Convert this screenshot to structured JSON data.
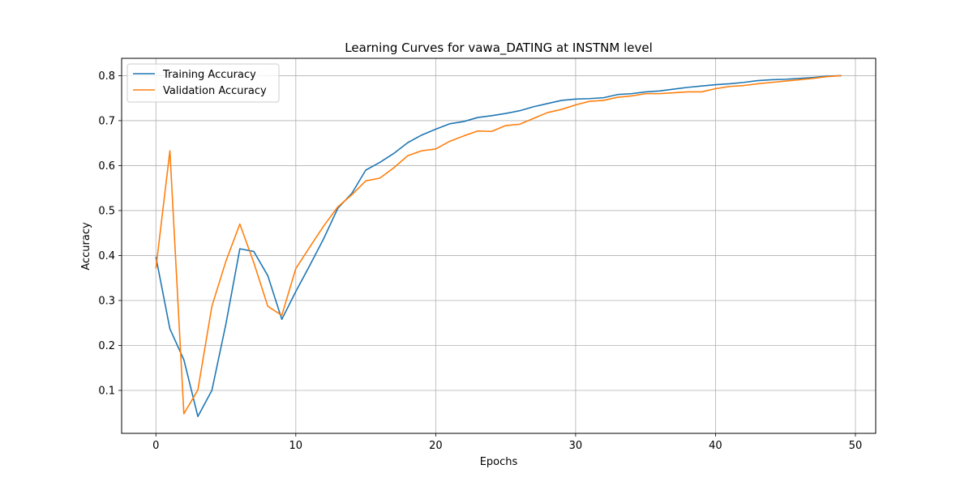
{
  "chart_data": {
    "type": "line",
    "title": "Learning Curves for vawa_DATING at INSTNM level",
    "xlabel": "Epochs",
    "ylabel": "Accuracy",
    "xlim": [
      -2.45,
      51.45
    ],
    "ylim": [
      0.0045,
      0.8386
    ],
    "xticks": [
      0,
      10,
      20,
      30,
      40,
      50
    ],
    "yticks": [
      0.1,
      0.2,
      0.3,
      0.4,
      0.5,
      0.6,
      0.7,
      0.8
    ],
    "ytick_labels": [
      "0.1",
      "0.2",
      "0.3",
      "0.4",
      "0.5",
      "0.6",
      "0.7",
      "0.8"
    ],
    "grid": true,
    "legend": "upper left",
    "x": [
      0,
      1,
      2,
      3,
      4,
      5,
      6,
      7,
      8,
      9,
      10,
      11,
      12,
      13,
      14,
      15,
      16,
      17,
      18,
      19,
      20,
      21,
      22,
      23,
      24,
      25,
      26,
      27,
      28,
      29,
      30,
      31,
      32,
      33,
      34,
      35,
      36,
      37,
      38,
      39,
      40,
      41,
      42,
      43,
      44,
      45,
      46,
      47,
      48,
      49
    ],
    "series": [
      {
        "name": "Training Accuracy",
        "color": "#1f77b4",
        "values": [
          0.397,
          0.237,
          0.168,
          0.042,
          0.1,
          0.247,
          0.415,
          0.409,
          0.355,
          0.258,
          0.32,
          0.378,
          0.438,
          0.505,
          0.538,
          0.59,
          0.607,
          0.627,
          0.651,
          0.668,
          0.681,
          0.693,
          0.698,
          0.707,
          0.711,
          0.716,
          0.722,
          0.731,
          0.738,
          0.745,
          0.748,
          0.749,
          0.751,
          0.758,
          0.76,
          0.764,
          0.766,
          0.77,
          0.774,
          0.777,
          0.78,
          0.782,
          0.785,
          0.789,
          0.791,
          0.792,
          0.794,
          0.796,
          0.799,
          0.8
        ]
      },
      {
        "name": "Validation Accuracy",
        "color": "#ff7f0e",
        "values": [
          0.371,
          0.633,
          0.048,
          0.101,
          0.287,
          0.387,
          0.47,
          0.384,
          0.287,
          0.267,
          0.371,
          0.419,
          0.466,
          0.508,
          0.535,
          0.566,
          0.572,
          0.595,
          0.622,
          0.633,
          0.637,
          0.654,
          0.666,
          0.677,
          0.676,
          0.689,
          0.692,
          0.705,
          0.718,
          0.725,
          0.735,
          0.743,
          0.745,
          0.752,
          0.755,
          0.76,
          0.76,
          0.762,
          0.764,
          0.764,
          0.771,
          0.776,
          0.778,
          0.782,
          0.785,
          0.788,
          0.791,
          0.794,
          0.798,
          0.8
        ]
      }
    ]
  }
}
